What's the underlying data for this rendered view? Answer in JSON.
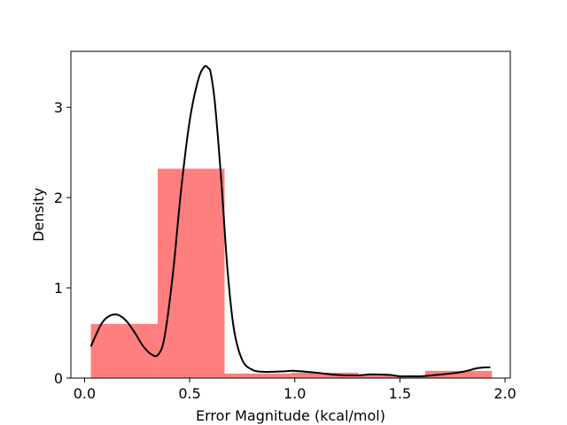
{
  "chart_data": {
    "type": "bar",
    "title": "",
    "xlabel": "Error Magnitude (kcal/mol)",
    "ylabel": "Density",
    "xlim": [
      -0.065,
      2.025
    ],
    "ylim": [
      0,
      3.62
    ],
    "xticks": [
      0.0,
      0.5,
      1.0,
      1.5,
      2.0
    ],
    "xtick_labels": [
      "0.0",
      "0.5",
      "1.0",
      "1.5",
      "2.0"
    ],
    "yticks": [
      0,
      1,
      2,
      3
    ],
    "ytick_labels": [
      "0",
      "1",
      "2",
      "3"
    ],
    "grid": false,
    "colors": {
      "bars": "#ff7f7f",
      "kde": "#000000"
    },
    "histogram": {
      "bin_edges": [
        0.03,
        0.348,
        0.666,
        0.984,
        1.302,
        1.62,
        1.938
      ],
      "density": [
        0.6,
        2.32,
        0.05,
        0.06,
        0.03,
        0.08
      ]
    },
    "kde": {
      "x": [
        0.03,
        0.08,
        0.12,
        0.16,
        0.2,
        0.24,
        0.28,
        0.32,
        0.35,
        0.38,
        0.42,
        0.46,
        0.5,
        0.54,
        0.57,
        0.59,
        0.6,
        0.62,
        0.65,
        0.68,
        0.71,
        0.75,
        0.8,
        0.85,
        0.9,
        0.95,
        1.0,
        1.1,
        1.2,
        1.3,
        1.36,
        1.45,
        1.5,
        1.55,
        1.6,
        1.7,
        1.8,
        1.87,
        1.93
      ],
      "y": [
        0.35,
        0.6,
        0.69,
        0.7,
        0.63,
        0.5,
        0.35,
        0.26,
        0.26,
        0.45,
        1.15,
        2.1,
        2.85,
        3.3,
        3.45,
        3.43,
        3.38,
        3.05,
        2.2,
        1.2,
        0.55,
        0.2,
        0.09,
        0.07,
        0.07,
        0.075,
        0.08,
        0.06,
        0.035,
        0.03,
        0.04,
        0.035,
        0.02,
        0.02,
        0.02,
        0.04,
        0.07,
        0.11,
        0.12
      ]
    }
  }
}
